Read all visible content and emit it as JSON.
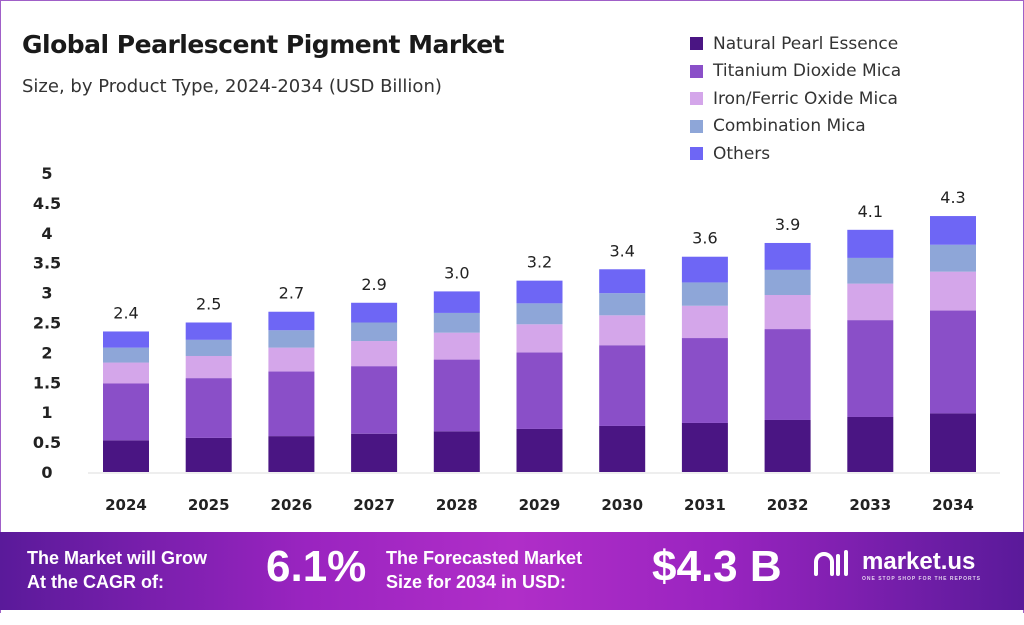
{
  "chart_data": {
    "type": "bar",
    "stacked": true,
    "title": "Global Pearlescent Pigment Market",
    "subtitle": "Size, by Product Type, 2024-2034 (USD Billion)",
    "categories": [
      "2024",
      "2025",
      "2026",
      "2027",
      "2028",
      "2029",
      "2030",
      "2031",
      "2032",
      "2033",
      "2034"
    ],
    "series": [
      {
        "name": "Natural Pearl Essence",
        "color": "#4a1583",
        "values": [
          0.53,
          0.57,
          0.6,
          0.64,
          0.68,
          0.72,
          0.77,
          0.82,
          0.87,
          0.92,
          0.98
        ]
      },
      {
        "name": "Titanium Dioxide Mica",
        "color": "#8a4fc8",
        "values": [
          0.95,
          1.0,
          1.08,
          1.13,
          1.2,
          1.28,
          1.35,
          1.42,
          1.52,
          1.62,
          1.72
        ]
      },
      {
        "name": "Iron/Ferric Oxide Mica",
        "color": "#d4a6ea",
        "values": [
          0.35,
          0.37,
          0.4,
          0.42,
          0.45,
          0.47,
          0.5,
          0.54,
          0.57,
          0.61,
          0.65
        ]
      },
      {
        "name": "Combination Mica",
        "color": "#8ea6d8",
        "values": [
          0.25,
          0.27,
          0.29,
          0.31,
          0.33,
          0.35,
          0.37,
          0.39,
          0.42,
          0.43,
          0.45
        ]
      },
      {
        "name": "Others",
        "color": "#6e66f5",
        "values": [
          0.27,
          0.29,
          0.31,
          0.33,
          0.36,
          0.38,
          0.4,
          0.43,
          0.45,
          0.47,
          0.48
        ]
      }
    ],
    "totals_labels": [
      "2.4",
      "2.5",
      "2.7",
      "2.9",
      "3.0",
      "3.2",
      "3.4",
      "3.6",
      "3.9",
      "4.1",
      "4.3"
    ],
    "yticks": [
      "0",
      "0.5",
      "1",
      "1.5",
      "2",
      "2.5",
      "3",
      "3.5",
      "4",
      "4.5",
      "5"
    ],
    "ylim": [
      0,
      5
    ],
    "grid": false,
    "legend": "top-right"
  },
  "footer": {
    "cagr_text_1": "The Market will Grow",
    "cagr_text_2": "At the CAGR of:",
    "cagr_value": "6.1%",
    "forecast_text_1": "The Forecasted Market",
    "forecast_text_2": "Size for 2034 in USD:",
    "forecast_value": "$4.3 B",
    "brand": "market.us",
    "brand_tagline": "ONE STOP SHOP FOR THE REPORTS"
  }
}
